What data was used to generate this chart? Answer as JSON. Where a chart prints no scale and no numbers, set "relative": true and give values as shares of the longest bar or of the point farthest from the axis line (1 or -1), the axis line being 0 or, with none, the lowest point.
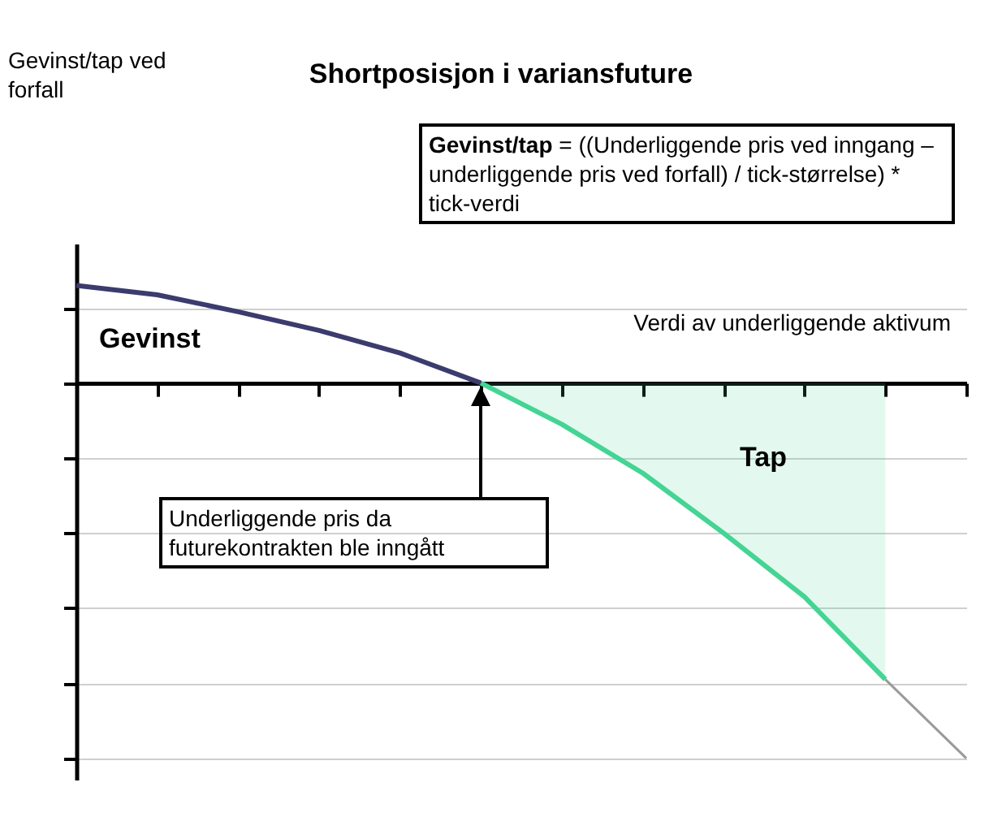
{
  "chart_data": {
    "type": "line",
    "title": "Shortposisjon i variansfuture",
    "xlabel": "Verdi av underliggende aktivum",
    "categories": [
      null,
      null,
      null,
      null,
      null,
      null,
      null,
      null,
      null,
      null,
      null,
      null
    ],
    "relative": true,
    "grid": "y",
    "marker": "none",
    "line_style": "solid",
    "series": [
      {
        "name": "Gevinst",
        "color": "#3b3b6e",
        "values": [
          0.26,
          0.235,
          0.19,
          0.14,
          0.08,
          0,
          null,
          null,
          null,
          null,
          null,
          null
        ]
      },
      {
        "name": "Tap",
        "type": "area",
        "color": "#44d494",
        "values": [
          null,
          null,
          null,
          null,
          null,
          0,
          -0.11,
          -0.24,
          -0.4,
          -0.57,
          -0.79,
          null
        ]
      },
      {
        "color": "#9a9a9a",
        "values": [
          null,
          null,
          null,
          null,
          null,
          null,
          null,
          null,
          null,
          null,
          -0.79,
          -1
        ]
      }
    ],
    "annotations": [
      "Gevinst/tap ved forfall",
      "Gevinst/tap = ((Underliggende pris ved inngang – underliggende pris ved forfall) / tick-størrelse) * tick-verdi",
      "Underliggende pris da futurekontrakten ble inngått"
    ]
  }
}
